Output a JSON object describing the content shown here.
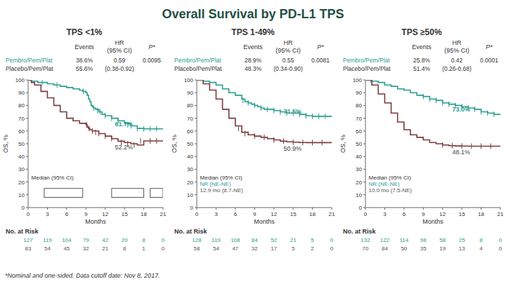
{
  "title": "Overall Survival by PD-L1 TPS",
  "footnote": "*Nominal and one-sided. Data cutoff date: Nov 8, 2017.",
  "headers": [
    "Events",
    "HR",
    "(95% CI)",
    "P*"
  ],
  "risk_label": "No. at Risk",
  "chart_data": [
    {
      "type": "step",
      "title": "TPS <1%",
      "xlabel": "Months",
      "ylabel": "OS, %",
      "xlim": [
        0,
        21
      ],
      "ylim": [
        0,
        100
      ],
      "xticks": [
        0,
        3,
        6,
        9,
        12,
        15,
        18,
        21
      ],
      "yticks": [
        0,
        10,
        20,
        30,
        40,
        50,
        60,
        70,
        80,
        90,
        100
      ],
      "grid": false,
      "hr": "0.59",
      "ci": "(0.38-0.92)",
      "p": "0.0095",
      "annotation": "Median (95% CI)",
      "boxes": [
        [
          2.5,
          8,
          6,
          7
        ],
        [
          13,
          8,
          5,
          7
        ],
        [
          19,
          8,
          2,
          7
        ]
      ],
      "series": [
        {
          "name": "Pembro/Pem/Plat",
          "color": "#2A9D8F",
          "events": "38.6%",
          "end_label": {
            "value": 61.7,
            "label": "61.7%"
          },
          "x": [
            0,
            0.5,
            1,
            1.5,
            2,
            3,
            4,
            5,
            6,
            7,
            8,
            8.5,
            9,
            9.2,
            9.4,
            9.6,
            9.8,
            10,
            10.2,
            10.5,
            11,
            11.5,
            12,
            13,
            14,
            15,
            16,
            17,
            18,
            21
          ],
          "values": [
            100,
            99,
            99,
            98,
            98,
            97,
            96,
            95,
            94,
            93,
            92,
            91,
            90,
            88,
            85,
            83,
            80,
            79,
            78,
            77,
            75,
            73,
            72,
            70,
            68,
            66,
            64,
            62,
            61.7,
            61.7
          ],
          "censor_x": [
            2.2,
            4.5,
            8.6,
            10.2,
            10.8,
            11.2,
            12,
            13,
            14,
            15.5,
            16,
            17,
            18,
            19,
            20
          ],
          "censor_values": [
            98,
            96,
            91,
            78,
            76,
            75,
            72,
            70,
            68,
            65,
            64,
            62,
            61.7,
            61.7,
            61.7
          ],
          "at_risk": [
            127,
            119,
            104,
            79,
            42,
            20,
            8,
            0
          ]
        },
        {
          "name": "Placebo/Pem/Plat",
          "color": "#7B3B3B",
          "events": "55.6%",
          "end_label": {
            "value": 52.2,
            "label": "52.2%"
          },
          "x": [
            0,
            0.5,
            1,
            2,
            3,
            4,
            5,
            6,
            7,
            8,
            9,
            9.2,
            9.4,
            9.6,
            10,
            11,
            12,
            13,
            14,
            15,
            16,
            17,
            18,
            21
          ],
          "values": [
            100,
            98,
            96,
            91,
            86,
            80,
            75,
            70,
            68,
            66,
            65,
            63,
            62,
            61,
            60,
            58,
            56,
            54,
            52,
            51,
            50,
            49,
            52.2,
            52.2
          ],
          "censor_x": [
            9.1,
            9.5,
            10,
            10.5,
            11,
            12,
            13,
            14.5,
            15.5,
            16.5,
            17.5,
            19,
            20
          ],
          "censor_values": [
            65,
            62,
            60,
            59,
            58,
            56,
            54,
            51,
            50,
            49,
            52.2,
            52.2,
            52.2
          ],
          "at_risk": [
            83,
            54,
            45,
            32,
            21,
            8,
            1,
            0
          ]
        }
      ]
    },
    {
      "type": "step",
      "title": "TPS 1-49%",
      "xlabel": "Months",
      "ylabel": "OS, %",
      "xlim": [
        0,
        21
      ],
      "ylim": [
        0,
        100
      ],
      "xticks": [
        0,
        3,
        6,
        9,
        12,
        15,
        18,
        21
      ],
      "yticks": [
        0,
        10,
        20,
        30,
        40,
        50,
        60,
        70,
        80,
        90,
        100
      ],
      "grid": false,
      "hr": "0.55",
      "ci": "(0.34-0.90)",
      "p": "0.0081",
      "annotation": "Median (95% CI)",
      "series": [
        {
          "name": "Pembro/Pem/Plat",
          "color": "#2A9D8F",
          "events": "28.9%",
          "end_label": {
            "value": 71.5,
            "label": "71.5%"
          },
          "median": "NR (NE-NE)",
          "x": [
            0,
            1,
            2,
            3,
            4,
            5,
            6,
            7,
            7.5,
            8,
            8.5,
            9,
            9.5,
            10,
            10.5,
            11,
            12,
            13,
            14,
            15,
            16,
            17,
            18,
            19,
            20,
            21
          ],
          "values": [
            100,
            99,
            98,
            96,
            93,
            90,
            88,
            85,
            83,
            82,
            81,
            80,
            79,
            78,
            77,
            77,
            76,
            75,
            74,
            74,
            73,
            72,
            71.5,
            71.5,
            71.5,
            71.5
          ],
          "censor_x": [
            7.2,
            8,
            9,
            10,
            11,
            12,
            13,
            14,
            15,
            16,
            17,
            18,
            19,
            20
          ],
          "censor_values": [
            84,
            82,
            80,
            78,
            77,
            76,
            75,
            74,
            74,
            73,
            72,
            71.5,
            71.5,
            71.5
          ],
          "at_risk": [
            128,
            119,
            108,
            84,
            52,
            21,
            5,
            0
          ]
        },
        {
          "name": "Placebo/Pem/Plat",
          "color": "#7B3B3B",
          "events": "48.3%",
          "end_label": {
            "value": 50.9,
            "label": "50.9%"
          },
          "median": "12.9 mo (8.7-NE)",
          "x": [
            0,
            1,
            2,
            3,
            4,
            5,
            6,
            7,
            8,
            9,
            10,
            11,
            12,
            13,
            14,
            15,
            16,
            17,
            18,
            19,
            20,
            21
          ],
          "values": [
            100,
            97,
            92,
            85,
            77,
            70,
            64,
            59,
            57,
            56,
            55,
            54,
            53,
            52,
            51.5,
            51.2,
            51,
            50.9,
            50.9,
            50.9,
            50.9,
            50.9
          ],
          "censor_x": [
            6.5,
            7.5,
            9,
            10.5,
            12,
            13.5,
            15,
            16.5,
            18,
            19.5
          ],
          "censor_values": [
            62,
            58,
            56,
            55,
            53,
            52,
            51.2,
            51,
            50.9,
            50.9
          ],
          "at_risk": [
            58,
            54,
            47,
            32,
            17,
            5,
            2,
            0
          ]
        }
      ]
    },
    {
      "type": "step",
      "title": "TPS ≥50%",
      "xlabel": "Months",
      "ylabel": "OS, %",
      "xlim": [
        0,
        21
      ],
      "ylim": [
        0,
        100
      ],
      "xticks": [
        0,
        3,
        6,
        9,
        12,
        15,
        18,
        21
      ],
      "yticks": [
        0,
        10,
        20,
        30,
        40,
        50,
        60,
        70,
        80,
        90,
        100
      ],
      "grid": false,
      "hr": "0.42",
      "ci": "(0.26-0.68)",
      "p": "0.0001",
      "annotation": "Median (95% CI)",
      "series": [
        {
          "name": "Pembro/Pem/Plat",
          "color": "#2A9D8F",
          "events": "25.8%",
          "end_label": {
            "value": 73.0,
            "label": "73.0%"
          },
          "median": "NR (NE-NE)",
          "x": [
            0,
            0.5,
            1,
            2,
            3,
            4,
            5,
            6,
            7,
            8,
            9,
            10,
            11,
            12,
            13,
            14,
            15,
            16,
            17,
            18,
            19,
            20,
            21
          ],
          "values": [
            100,
            100,
            99,
            98,
            96,
            95,
            93,
            92,
            90,
            88,
            87,
            85,
            84,
            82,
            81,
            80,
            79,
            78,
            77,
            75,
            74,
            73,
            73
          ],
          "censor_x": [
            0.8,
            9,
            10,
            11,
            12,
            13,
            14,
            15,
            16,
            17,
            18,
            19,
            20
          ],
          "censor_values": [
            100,
            87,
            85,
            84,
            82,
            81,
            80,
            79,
            78,
            77,
            75,
            74,
            73
          ],
          "at_risk": [
            132,
            122,
            114,
            98,
            58,
            25,
            8,
            0
          ]
        },
        {
          "name": "Placebo/Pem/Plat",
          "color": "#7B3B3B",
          "events": "51.4%",
          "end_label": {
            "value": 48.1,
            "label": "48.1%"
          },
          "median": "10.0 mo (7.5-NE)",
          "x": [
            0,
            1,
            2,
            3,
            4,
            5,
            6,
            7,
            8,
            9,
            10,
            11,
            12,
            13,
            14,
            15,
            16,
            17,
            18,
            19,
            20,
            21
          ],
          "values": [
            100,
            96,
            89,
            82,
            74,
            67,
            61,
            57,
            55,
            53,
            51,
            50,
            49,
            48.5,
            48.3,
            48.2,
            48.1,
            48.1,
            48.1,
            48.1,
            48.1,
            48.1
          ],
          "censor_x": [
            12,
            13.5,
            15,
            16.5,
            18,
            19.5
          ],
          "censor_values": [
            49,
            48.5,
            48.2,
            48.1,
            48.1,
            48.1
          ],
          "at_risk": [
            70,
            84,
            50,
            35,
            19,
            13,
            4,
            0
          ]
        }
      ]
    }
  ]
}
